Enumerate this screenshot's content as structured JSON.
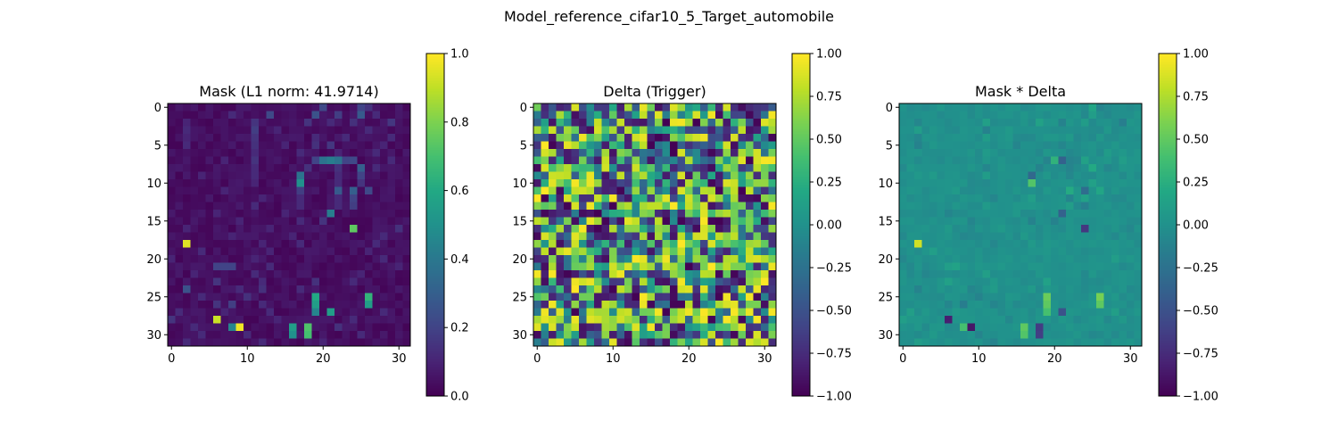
{
  "figure": {
    "suptitle": "Model_reference_cifar10_5_Target_automobile"
  },
  "colormap": "viridis",
  "chart_data": [
    {
      "type": "heatmap",
      "title": "Mask (L1 norm: 41.9714)",
      "matrix_size": 32,
      "vmin": 0.0,
      "vmax": 1.0,
      "xticks": [
        0,
        10,
        20,
        30
      ],
      "yticks": [
        0,
        5,
        10,
        15,
        20,
        25,
        30
      ],
      "colorbar_ticks": [
        "0.0",
        "0.2",
        "0.4",
        "0.6",
        "0.8",
        "1.0"
      ],
      "background_value": 0.03,
      "cells": [
        [
          0,
          20,
          0.22
        ],
        [
          0,
          25,
          0.2
        ],
        [
          0,
          26,
          0.15
        ],
        [
          1,
          8,
          0.12
        ],
        [
          1,
          13,
          0.22
        ],
        [
          1,
          19,
          0.25
        ],
        [
          1,
          22,
          0.18
        ],
        [
          1,
          25,
          0.28
        ],
        [
          1,
          27,
          0.12
        ],
        [
          2,
          2,
          0.1
        ],
        [
          2,
          11,
          0.15
        ],
        [
          2,
          18,
          0.15
        ],
        [
          2,
          21,
          0.12
        ],
        [
          2,
          24,
          0.14
        ],
        [
          2,
          29,
          0.16
        ],
        [
          3,
          2,
          0.12
        ],
        [
          3,
          11,
          0.18
        ],
        [
          3,
          14,
          0.1
        ],
        [
          3,
          26,
          0.12
        ],
        [
          4,
          2,
          0.1
        ],
        [
          4,
          11,
          0.15
        ],
        [
          4,
          19,
          0.12
        ],
        [
          4,
          23,
          0.12
        ],
        [
          4,
          29,
          0.12
        ],
        [
          5,
          2,
          0.12
        ],
        [
          5,
          11,
          0.14
        ],
        [
          5,
          15,
          0.1
        ],
        [
          5,
          19,
          0.14
        ],
        [
          5,
          21,
          0.16
        ],
        [
          5,
          28,
          0.1
        ],
        [
          6,
          11,
          0.12
        ],
        [
          6,
          17,
          0.12
        ],
        [
          6,
          22,
          0.1
        ],
        [
          6,
          27,
          0.12
        ],
        [
          7,
          7,
          0.1
        ],
        [
          7,
          11,
          0.15
        ],
        [
          7,
          19,
          0.2
        ],
        [
          7,
          20,
          0.38
        ],
        [
          7,
          21,
          0.42
        ],
        [
          7,
          22,
          0.38
        ],
        [
          7,
          23,
          0.2
        ],
        [
          7,
          24,
          0.22
        ],
        [
          7,
          29,
          0.12
        ],
        [
          8,
          11,
          0.12
        ],
        [
          8,
          18,
          0.14
        ],
        [
          8,
          22,
          0.14
        ],
        [
          8,
          25,
          0.3
        ],
        [
          8,
          27,
          0.12
        ],
        [
          9,
          4,
          0.1
        ],
        [
          9,
          11,
          0.12
        ],
        [
          9,
          17,
          0.38
        ],
        [
          9,
          22,
          0.12
        ],
        [
          9,
          25,
          0.2
        ],
        [
          10,
          11,
          0.1
        ],
        [
          10,
          17,
          0.5
        ],
        [
          10,
          22,
          0.12
        ],
        [
          10,
          25,
          0.15
        ],
        [
          11,
          7,
          0.1
        ],
        [
          11,
          17,
          0.18
        ],
        [
          11,
          22,
          0.28
        ],
        [
          11,
          24,
          0.3
        ],
        [
          11,
          26,
          0.22
        ],
        [
          12,
          12,
          0.1
        ],
        [
          12,
          17,
          0.12
        ],
        [
          12,
          22,
          0.12
        ],
        [
          12,
          24,
          0.2
        ],
        [
          13,
          11,
          0.12
        ],
        [
          13,
          17,
          0.12
        ],
        [
          13,
          22,
          0.12
        ],
        [
          13,
          24,
          0.18
        ],
        [
          14,
          6,
          0.1
        ],
        [
          14,
          15,
          0.1
        ],
        [
          14,
          21,
          0.42
        ],
        [
          15,
          9,
          0.1
        ],
        [
          15,
          17,
          0.12
        ],
        [
          15,
          20,
          0.15
        ],
        [
          16,
          2,
          0.1
        ],
        [
          16,
          13,
          0.1
        ],
        [
          16,
          24,
          0.75
        ],
        [
          16,
          30,
          0.14
        ],
        [
          17,
          8,
          0.1
        ],
        [
          17,
          16,
          0.1
        ],
        [
          17,
          28,
          0.12
        ],
        [
          18,
          2,
          0.95
        ],
        [
          18,
          12,
          0.1
        ],
        [
          18,
          17,
          0.12
        ],
        [
          18,
          27,
          0.12
        ],
        [
          19,
          4,
          0.12
        ],
        [
          19,
          13,
          0.1
        ],
        [
          19,
          26,
          0.1
        ],
        [
          20,
          0,
          0.1
        ],
        [
          20,
          11,
          0.1
        ],
        [
          20,
          28,
          0.12
        ],
        [
          21,
          6,
          0.2
        ],
        [
          21,
          7,
          0.2
        ],
        [
          21,
          8,
          0.2
        ],
        [
          21,
          13,
          0.12
        ],
        [
          21,
          30,
          0.1
        ],
        [
          22,
          3,
          0.1
        ],
        [
          22,
          11,
          0.12
        ],
        [
          22,
          25,
          0.1
        ],
        [
          23,
          6,
          0.15
        ],
        [
          23,
          12,
          0.12
        ],
        [
          23,
          19,
          0.14
        ],
        [
          23,
          24,
          0.12
        ],
        [
          24,
          2,
          0.25
        ],
        [
          24,
          9,
          0.12
        ],
        [
          24,
          12,
          0.14
        ],
        [
          24,
          17,
          0.12
        ],
        [
          25,
          4,
          0.12
        ],
        [
          25,
          10,
          0.14
        ],
        [
          25,
          19,
          0.6
        ],
        [
          25,
          26,
          0.65
        ],
        [
          26,
          6,
          0.15
        ],
        [
          26,
          8,
          0.18
        ],
        [
          26,
          12,
          0.12
        ],
        [
          26,
          19,
          0.55
        ],
        [
          26,
          26,
          0.55
        ],
        [
          27,
          1,
          0.12
        ],
        [
          27,
          7,
          0.1
        ],
        [
          27,
          13,
          0.12
        ],
        [
          27,
          19,
          0.45
        ],
        [
          27,
          21,
          0.55
        ],
        [
          27,
          28,
          0.12
        ],
        [
          28,
          0,
          0.15
        ],
        [
          28,
          6,
          0.92
        ],
        [
          28,
          14,
          0.1
        ],
        [
          28,
          24,
          0.12
        ],
        [
          29,
          3,
          0.12
        ],
        [
          29,
          8,
          0.45
        ],
        [
          29,
          9,
          0.98
        ],
        [
          29,
          16,
          0.55
        ],
        [
          29,
          18,
          0.72
        ],
        [
          29,
          22,
          0.14
        ],
        [
          30,
          4,
          0.12
        ],
        [
          30,
          10,
          0.12
        ],
        [
          30,
          16,
          0.5
        ],
        [
          30,
          18,
          0.7
        ],
        [
          30,
          25,
          0.12
        ],
        [
          31,
          2,
          0.12
        ],
        [
          31,
          12,
          0.12
        ],
        [
          31,
          20,
          0.1
        ]
      ]
    },
    {
      "type": "heatmap",
      "title": "Delta (Trigger)",
      "matrix_size": 32,
      "vmin": -1.0,
      "vmax": 1.0,
      "xticks": [
        0,
        10,
        20,
        30
      ],
      "yticks": [
        0,
        5,
        10,
        15,
        20,
        25,
        30
      ],
      "colorbar_ticks": [
        "−1.00",
        "−0.75",
        "−0.50",
        "−0.25",
        "0.00",
        "0.25",
        "0.50",
        "0.75",
        "1.00"
      ],
      "pattern": "dense_random_noise"
    },
    {
      "type": "heatmap",
      "title": "Mask * Delta",
      "matrix_size": 32,
      "vmin": -1.0,
      "vmax": 1.0,
      "xticks": [
        0,
        10,
        20,
        30
      ],
      "yticks": [
        0,
        5,
        10,
        15,
        20,
        25,
        30
      ],
      "colorbar_ticks": [
        "−1.00",
        "−0.75",
        "−0.50",
        "−0.25",
        "0.00",
        "0.25",
        "0.50",
        "0.75",
        "1.00"
      ],
      "derived_from": "mask_times_delta"
    }
  ]
}
